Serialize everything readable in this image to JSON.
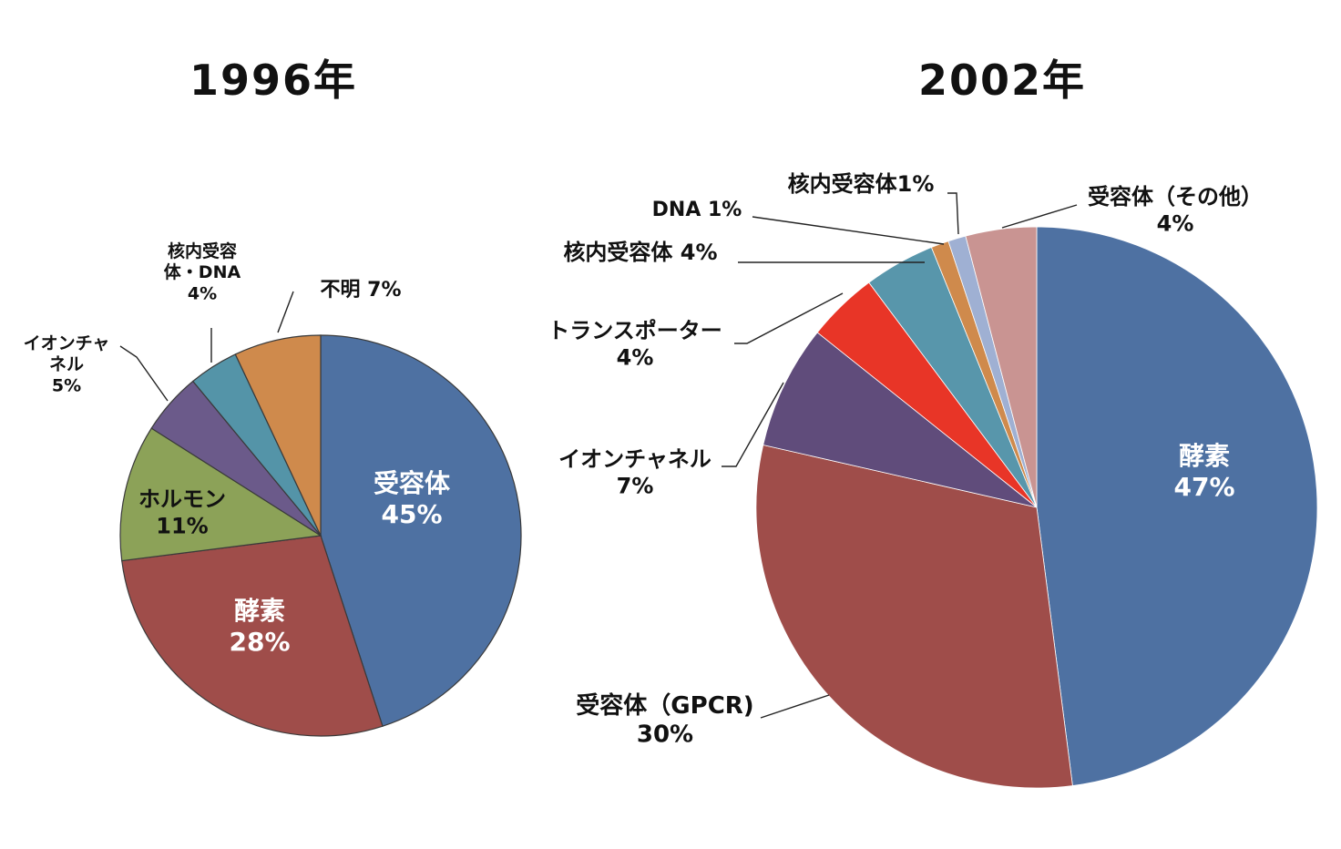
{
  "chart_data": [
    {
      "type": "pie",
      "title": "1996年",
      "slices": [
        {
          "name": "受容体",
          "value": 45,
          "label": "45%",
          "color": "#4e71a2"
        },
        {
          "name": "酵素",
          "value": 28,
          "label": "28%",
          "color": "#9f4d4a"
        },
        {
          "name": "ホルモン",
          "value": 11,
          "label": "11%",
          "color": "#8ca258"
        },
        {
          "name": "イオンチャネル",
          "name_lines": [
            "イオンチャ",
            "ネル"
          ],
          "value": 5,
          "label": "5%",
          "color": "#6b5a8a"
        },
        {
          "name": "核内受容体・DNA",
          "name_lines": [
            "核内受容",
            "体・DNA"
          ],
          "value": 4,
          "label": "4%",
          "color": "#5494a8"
        },
        {
          "name": "不明",
          "value": 7,
          "label": "7%",
          "color": "#cf8a4c"
        }
      ]
    },
    {
      "type": "pie",
      "title": "2002年",
      "slices": [
        {
          "name": "酵素",
          "value": 47,
          "label": "47%",
          "color": "#4e71a2"
        },
        {
          "name": "受容体（GPCR)",
          "value": 30,
          "label": "30%",
          "color": "#9f4d4a"
        },
        {
          "name": "イオンチャネル",
          "value": 7,
          "label": "7%",
          "color": "#604c7b"
        },
        {
          "name": "トランスポーター",
          "value": 4,
          "label": "4%",
          "color": "#e83527"
        },
        {
          "name": "核内受容体",
          "value": 4,
          "label": "4%",
          "color": "#5896ab"
        },
        {
          "name": "DNA",
          "value": 1,
          "label": "1%",
          "color": "#cf8a4c"
        },
        {
          "name": "核内受容体",
          "value": 1,
          "label": "1%",
          "color": "#9fb0d3"
        },
        {
          "name": "受容体（その他）",
          "value": 4,
          "label": "4%",
          "color": "#c99492"
        }
      ]
    }
  ]
}
